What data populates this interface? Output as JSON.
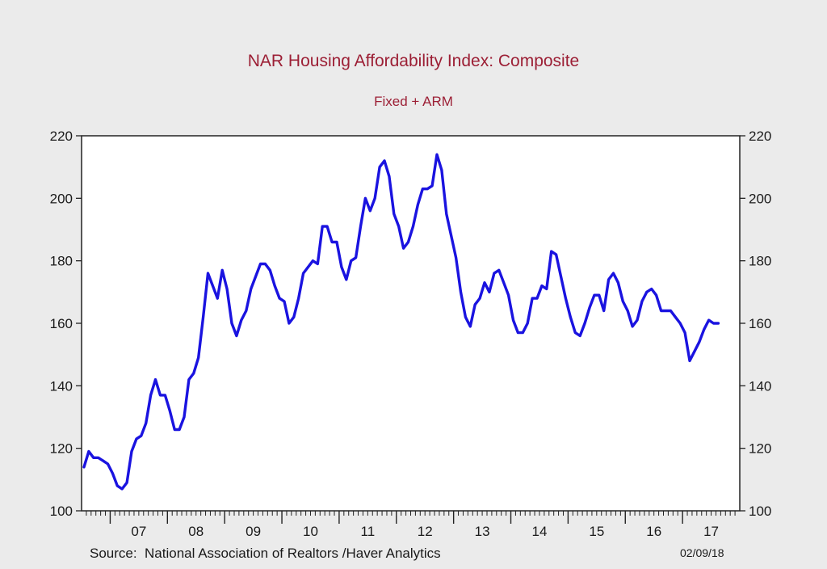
{
  "chart_data": {
    "type": "line",
    "title": "NAR Housing Affordability Index: Composite",
    "subtitle": "Fixed + ARM",
    "source": "Source:  National Association of Realtors /Haver Analytics",
    "date_stamp": "02/09/18",
    "ylim": [
      100,
      220
    ],
    "yticks": [
      100,
      120,
      140,
      160,
      180,
      200,
      220
    ],
    "y_axis_sides": "left and right",
    "x_range": [
      "2006-07",
      "2017-12"
    ],
    "xticks": [
      "07",
      "08",
      "09",
      "10",
      "11",
      "12",
      "13",
      "14",
      "15",
      "16",
      "17"
    ],
    "grid": false,
    "series": [
      {
        "color": "#1a13e0",
        "points": [
          [
            "2006-07",
            114
          ],
          [
            "2006-08",
            119
          ],
          [
            "2006-09",
            117
          ],
          [
            "2006-10",
            117
          ],
          [
            "2006-11",
            116
          ],
          [
            "2006-12",
            115
          ],
          [
            "2007-01",
            112
          ],
          [
            "2007-02",
            108
          ],
          [
            "2007-03",
            107
          ],
          [
            "2007-04",
            109
          ],
          [
            "2007-05",
            119
          ],
          [
            "2007-06",
            123
          ],
          [
            "2007-07",
            124
          ],
          [
            "2007-08",
            128
          ],
          [
            "2007-09",
            137
          ],
          [
            "2007-10",
            142
          ],
          [
            "2007-11",
            137
          ],
          [
            "2007-12",
            137
          ],
          [
            "2008-01",
            132
          ],
          [
            "2008-02",
            126
          ],
          [
            "2008-03",
            126
          ],
          [
            "2008-04",
            130
          ],
          [
            "2008-05",
            142
          ],
          [
            "2008-06",
            144
          ],
          [
            "2008-07",
            149
          ],
          [
            "2008-08",
            162
          ],
          [
            "2008-09",
            176
          ],
          [
            "2008-10",
            172
          ],
          [
            "2008-11",
            168
          ],
          [
            "2008-12",
            177
          ],
          [
            "2009-01",
            171
          ],
          [
            "2009-02",
            160
          ],
          [
            "2009-03",
            156
          ],
          [
            "2009-04",
            161
          ],
          [
            "2009-05",
            164
          ],
          [
            "2009-06",
            171
          ],
          [
            "2009-07",
            175
          ],
          [
            "2009-08",
            179
          ],
          [
            "2009-09",
            179
          ],
          [
            "2009-10",
            177
          ],
          [
            "2009-11",
            172
          ],
          [
            "2009-12",
            168
          ],
          [
            "2010-01",
            167
          ],
          [
            "2010-02",
            160
          ],
          [
            "2010-03",
            162
          ],
          [
            "2010-04",
            168
          ],
          [
            "2010-05",
            176
          ],
          [
            "2010-06",
            178
          ],
          [
            "2010-07",
            180
          ],
          [
            "2010-08",
            179
          ],
          [
            "2010-09",
            191
          ],
          [
            "2010-10",
            191
          ],
          [
            "2010-11",
            186
          ],
          [
            "2010-12",
            186
          ],
          [
            "2011-01",
            178
          ],
          [
            "2011-02",
            174
          ],
          [
            "2011-03",
            180
          ],
          [
            "2011-04",
            181
          ],
          [
            "2011-05",
            191
          ],
          [
            "2011-06",
            200
          ],
          [
            "2011-07",
            196
          ],
          [
            "2011-08",
            200
          ],
          [
            "2011-09",
            210
          ],
          [
            "2011-10",
            212
          ],
          [
            "2011-11",
            207
          ],
          [
            "2011-12",
            195
          ],
          [
            "2012-01",
            191
          ],
          [
            "2012-02",
            184
          ],
          [
            "2012-03",
            186
          ],
          [
            "2012-04",
            191
          ],
          [
            "2012-05",
            198
          ],
          [
            "2012-06",
            203
          ],
          [
            "2012-07",
            203
          ],
          [
            "2012-08",
            204
          ],
          [
            "2012-09",
            214
          ],
          [
            "2012-10",
            209
          ],
          [
            "2012-11",
            195
          ],
          [
            "2012-12",
            188
          ],
          [
            "2013-01",
            181
          ],
          [
            "2013-02",
            170
          ],
          [
            "2013-03",
            162
          ],
          [
            "2013-04",
            159
          ],
          [
            "2013-05",
            166
          ],
          [
            "2013-06",
            168
          ],
          [
            "2013-07",
            173
          ],
          [
            "2013-08",
            170
          ],
          [
            "2013-09",
            176
          ],
          [
            "2013-10",
            177
          ],
          [
            "2013-11",
            173
          ],
          [
            "2013-12",
            169
          ],
          [
            "2014-01",
            161
          ],
          [
            "2014-02",
            157
          ],
          [
            "2014-03",
            157
          ],
          [
            "2014-04",
            160
          ],
          [
            "2014-05",
            168
          ],
          [
            "2014-06",
            168
          ],
          [
            "2014-07",
            172
          ],
          [
            "2014-08",
            171
          ],
          [
            "2014-09",
            183
          ],
          [
            "2014-10",
            182
          ],
          [
            "2014-11",
            175
          ],
          [
            "2014-12",
            168
          ],
          [
            "2015-01",
            162
          ],
          [
            "2015-02",
            157
          ],
          [
            "2015-03",
            156
          ],
          [
            "2015-04",
            160
          ],
          [
            "2015-05",
            165
          ],
          [
            "2015-06",
            169
          ],
          [
            "2015-07",
            169
          ],
          [
            "2015-08",
            164
          ],
          [
            "2015-09",
            174
          ],
          [
            "2015-10",
            176
          ],
          [
            "2015-11",
            173
          ],
          [
            "2015-12",
            167
          ],
          [
            "2016-01",
            164
          ],
          [
            "2016-02",
            159
          ],
          [
            "2016-03",
            161
          ],
          [
            "2016-04",
            167
          ],
          [
            "2016-05",
            170
          ],
          [
            "2016-06",
            171
          ],
          [
            "2016-07",
            169
          ],
          [
            "2016-08",
            164
          ],
          [
            "2016-09",
            164
          ],
          [
            "2016-10",
            164
          ],
          [
            "2016-11",
            162
          ],
          [
            "2016-12",
            160
          ],
          [
            "2017-01",
            157
          ],
          [
            "2017-02",
            148
          ],
          [
            "2017-03",
            151
          ],
          [
            "2017-04",
            154
          ],
          [
            "2017-05",
            158
          ],
          [
            "2017-06",
            161
          ],
          [
            "2017-07",
            160
          ],
          [
            "2017-08",
            160
          ]
        ]
      }
    ]
  }
}
